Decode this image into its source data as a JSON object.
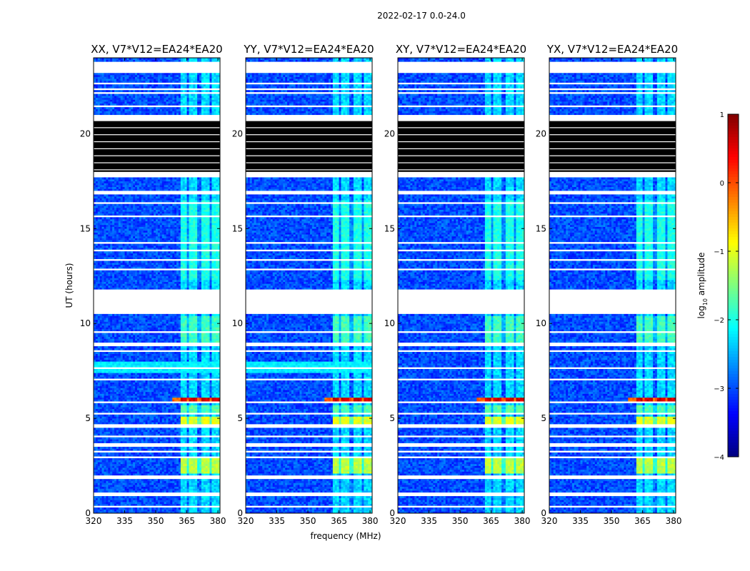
{
  "chart_data": {
    "type": "heatmap",
    "title": "2022-02-17 0.0-24.0",
    "xlabel": "frequency (MHz)",
    "ylabel": "UT (hours)",
    "xlim": [
      320,
      381
    ],
    "ylim": [
      0,
      24
    ],
    "x_ticks": [
      "320",
      "335",
      "350",
      "365",
      "380"
    ],
    "x_tick_values": [
      320,
      335,
      350,
      365,
      380
    ],
    "y_ticks": [
      "0",
      "5",
      "10",
      "15",
      "20"
    ],
    "y_tick_values": [
      0,
      5,
      10,
      15,
      20
    ],
    "panels": [
      {
        "title": "XX, V7*V12=EA24*EA20",
        "pol": "XX"
      },
      {
        "title": "YY, V7*V12=EA24*EA20",
        "pol": "YY"
      },
      {
        "title": "XY, V7*V12=EA24*EA20",
        "pol": "XY"
      },
      {
        "title": "YX, V7*V12=EA24*EA20",
        "pol": "YX"
      }
    ],
    "colorbar": {
      "label": "log",
      "label_sub": "10",
      "label_rest": " amplitude",
      "range": [
        -4,
        1
      ],
      "ticks": [
        "−4",
        "−3",
        "−2",
        "−1",
        "0",
        "1"
      ],
      "tick_values": [
        -4,
        -3,
        -2,
        -1,
        0,
        1
      ],
      "colormap": [
        "#00007f",
        "#0000ff",
        "#007fff",
        "#00ffff",
        "#7fff7f",
        "#ffff00",
        "#ff7f00",
        "#ff0000",
        "#7f0000"
      ]
    },
    "blank_hours": [
      [
        0.35,
        0.45
      ],
      [
        0.9,
        1.15
      ],
      [
        1.8,
        2.05
      ],
      [
        2.95,
        3.05
      ],
      [
        3.25,
        3.35
      ],
      [
        3.55,
        3.7
      ],
      [
        4.05,
        4.15
      ],
      [
        4.55,
        4.65
      ],
      [
        5.15,
        5.25
      ],
      [
        5.75,
        5.85
      ],
      [
        6.95,
        7.05
      ],
      [
        7.55,
        7.65
      ],
      [
        8.45,
        8.55
      ],
      [
        8.8,
        8.95
      ],
      [
        9.45,
        9.55
      ],
      [
        10.5,
        11.75
      ],
      [
        12.05,
        12.12
      ],
      [
        12.8,
        12.9
      ],
      [
        13.25,
        13.35
      ],
      [
        13.75,
        13.85
      ],
      [
        14.2,
        14.3
      ],
      [
        15.55,
        15.65
      ],
      [
        16.3,
        16.4
      ],
      [
        16.75,
        17.0
      ],
      [
        17.25,
        17.32
      ],
      [
        17.7,
        18.0
      ],
      [
        20.75,
        21.05
      ],
      [
        21.4,
        21.55
      ],
      [
        22.1,
        22.2
      ],
      [
        22.35,
        22.45
      ],
      [
        22.65,
        22.75
      ],
      [
        23.2,
        23.85
      ]
    ],
    "dark_block_hours": [
      18.0,
      20.75
    ],
    "rfi_band_mhz": [
      362,
      381
    ],
    "rfi_columns_mhz": [
      [
        362,
        365
      ],
      [
        366,
        370
      ],
      [
        372,
        376
      ],
      [
        377,
        381
      ]
    ],
    "bright_events": [
      {
        "hours": [
          5.85,
          6.05
        ],
        "mhz": [
          358,
          381
        ],
        "level": 0.6,
        "note": "strong RFI burst"
      },
      {
        "hours": [
          4.6,
          5.1
        ],
        "mhz": [
          362,
          381
        ],
        "level": -1.0
      },
      {
        "hours": [
          2.1,
          2.9
        ],
        "mhz": [
          362,
          381
        ],
        "level": -1.2
      },
      {
        "hours": [
          5.25,
          5.7
        ],
        "mhz": [
          362,
          381
        ],
        "level": -1.7
      },
      {
        "hours": [
          8.8,
          10.4
        ],
        "mhz": [
          362,
          381
        ],
        "level": -1.8
      },
      {
        "hours": [
          12.3,
          16.5
        ],
        "mhz": [
          362,
          381
        ],
        "level": -2.0
      }
    ]
  }
}
